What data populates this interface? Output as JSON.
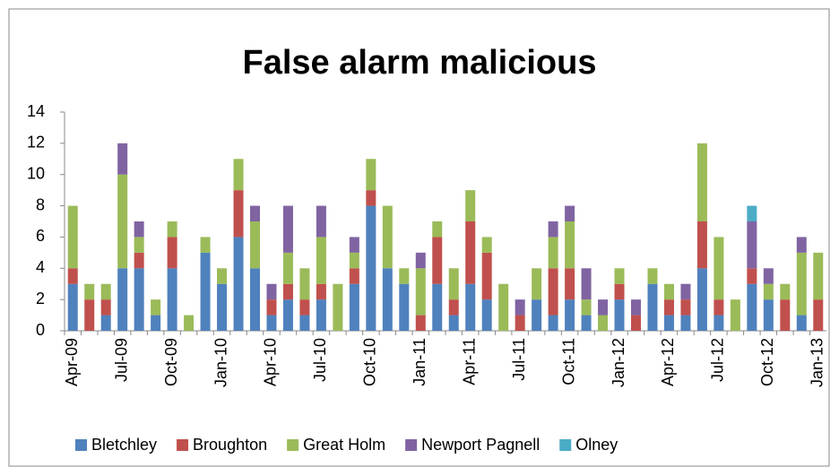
{
  "chart_data": {
    "type": "bar",
    "stacked": true,
    "title": "False alarm malicious",
    "categories": [
      "Apr-09",
      null,
      null,
      "Jul-09",
      null,
      null,
      "Oct-09",
      null,
      null,
      "Jan-10",
      null,
      null,
      "Apr-10",
      null,
      null,
      "Jul-10",
      null,
      null,
      "Oct-10",
      null,
      null,
      "Jan-11",
      null,
      null,
      "Apr-11",
      null,
      null,
      "Jul-11",
      null,
      null,
      "Oct-11",
      null,
      null,
      "Jan-12",
      null,
      null,
      "Apr-12",
      null,
      null,
      "Jul-12",
      null,
      null,
      "Oct-12",
      null,
      null,
      "Jan-13"
    ],
    "series": [
      {
        "name": "Bletchley",
        "color": "#4f81bd",
        "values": [
          3,
          0,
          1,
          4,
          4,
          1,
          4,
          0,
          5,
          3,
          6,
          4,
          1,
          2,
          1,
          2,
          0,
          3,
          8,
          4,
          3,
          0,
          3,
          1,
          3,
          2,
          0,
          0,
          2,
          1,
          2,
          1,
          0,
          2,
          0,
          3,
          1,
          1,
          4,
          1,
          0,
          3,
          2,
          0,
          1,
          0
        ]
      },
      {
        "name": "Broughton",
        "color": "#c0504d",
        "values": [
          1,
          2,
          1,
          0,
          1,
          0,
          2,
          0,
          0,
          0,
          3,
          0,
          1,
          1,
          1,
          1,
          0,
          1,
          1,
          0,
          0,
          1,
          3,
          1,
          4,
          3,
          0,
          1,
          0,
          3,
          2,
          0,
          0,
          1,
          1,
          0,
          1,
          1,
          3,
          1,
          0,
          1,
          0,
          2,
          0,
          2
        ]
      },
      {
        "name": "Great Holm",
        "color": "#9bbb59",
        "values": [
          4,
          1,
          1,
          6,
          1,
          1,
          1,
          1,
          1,
          1,
          2,
          3,
          0,
          2,
          2,
          3,
          3,
          1,
          2,
          4,
          1,
          3,
          1,
          2,
          2,
          1,
          3,
          0,
          2,
          2,
          3,
          1,
          1,
          1,
          0,
          1,
          1,
          0,
          5,
          4,
          2,
          0,
          1,
          1,
          4,
          3
        ]
      },
      {
        "name": "Newport Pagnell",
        "color": "#8064a2",
        "values": [
          0,
          0,
          0,
          2,
          1,
          0,
          0,
          0,
          0,
          0,
          0,
          1,
          1,
          3,
          0,
          2,
          0,
          1,
          0,
          0,
          0,
          1,
          0,
          0,
          0,
          0,
          0,
          1,
          0,
          1,
          1,
          2,
          1,
          0,
          1,
          0,
          0,
          1,
          0,
          0,
          0,
          3,
          1,
          0,
          1,
          0
        ]
      },
      {
        "name": "Olney",
        "color": "#4bacc6",
        "values": [
          0,
          0,
          0,
          0,
          0,
          0,
          0,
          0,
          0,
          0,
          0,
          0,
          0,
          0,
          0,
          0,
          0,
          0,
          0,
          0,
          0,
          0,
          0,
          0,
          0,
          0,
          0,
          0,
          0,
          0,
          0,
          0,
          0,
          0,
          0,
          0,
          0,
          0,
          0,
          0,
          0,
          1,
          0,
          0,
          0,
          0
        ]
      }
    ],
    "ylim": [
      0,
      14
    ],
    "yticks": [
      0,
      2,
      4,
      6,
      8,
      10,
      12,
      14
    ],
    "grid": false,
    "legend": "bottom"
  }
}
